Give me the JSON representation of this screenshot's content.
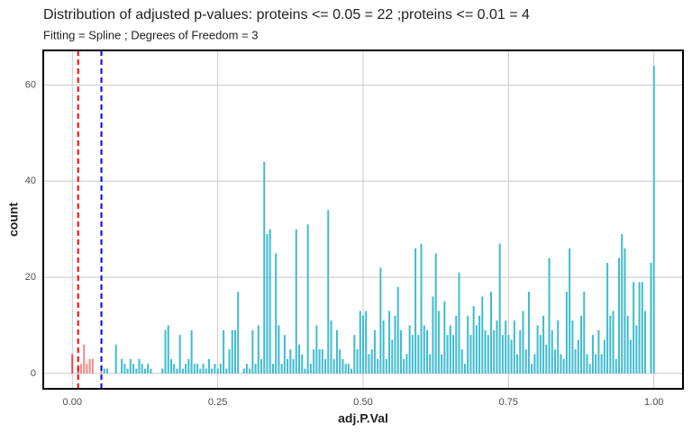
{
  "chart_data": {
    "type": "histogram",
    "title": "Distribution of adjusted p-values:  proteins <= 0.05 = 22 ;proteins <= 0.01 = 4",
    "subtitle": "Fitting = Spline ; Degrees of Freedom = 3",
    "x_label": "adj.P.Val",
    "y_label": "count",
    "bins": [
      -0.0025,
      0.0025,
      0.0075,
      0.0125,
      0.0175,
      0.0225,
      0.0275,
      0.0325,
      0.0375,
      0.0425,
      0.0475,
      0.0525,
      0.0575,
      0.0625,
      0.0675,
      0.0725,
      0.0775,
      0.0825,
      0.0875,
      0.0925,
      0.0975,
      0.1025,
      0.1075,
      0.1125,
      0.1175,
      0.1225,
      0.1275,
      0.1325,
      0.1375,
      0.1425,
      0.1475,
      0.1525,
      0.1575,
      0.1625,
      0.1675,
      0.1725,
      0.1775,
      0.1825,
      0.1875,
      0.1925,
      0.1975,
      0.2025,
      0.2075,
      0.2125,
      0.2175,
      0.2225,
      0.2275,
      0.2325,
      0.2375,
      0.2425,
      0.2475,
      0.2525,
      0.2575,
      0.2625,
      0.2675,
      0.2725,
      0.2775,
      0.2825,
      0.2875,
      0.2925,
      0.2975,
      0.3025,
      0.3075,
      0.3125,
      0.3175,
      0.3225,
      0.3275,
      0.3325,
      0.3375,
      0.3425,
      0.3475,
      0.3525,
      0.3575,
      0.3625,
      0.3675,
      0.3725,
      0.3775,
      0.3825,
      0.3875,
      0.3925,
      0.3975,
      0.4025,
      0.4075,
      0.4125,
      0.4175,
      0.4225,
      0.4275,
      0.4325,
      0.4375,
      0.4425,
      0.4475,
      0.4525,
      0.4575,
      0.4625,
      0.4675,
      0.4725,
      0.4775,
      0.4825,
      0.4875,
      0.4925,
      0.4975,
      0.5025,
      0.5075,
      0.5125,
      0.5175,
      0.5225,
      0.5275,
      0.5325,
      0.5375,
      0.5425,
      0.5475,
      0.5525,
      0.5575,
      0.5625,
      0.5675,
      0.5725,
      0.5775,
      0.5825,
      0.5875,
      0.5925,
      0.5975,
      0.6025,
      0.6075,
      0.6125,
      0.6175,
      0.6225,
      0.6275,
      0.6325,
      0.6375,
      0.6425,
      0.6475,
      0.6525,
      0.6575,
      0.6625,
      0.6675,
      0.6725,
      0.6775,
      0.6825,
      0.6875,
      0.6925,
      0.6975,
      0.7025,
      0.7075,
      0.7125,
      0.7175,
      0.7225,
      0.7275,
      0.7325,
      0.7375,
      0.7425,
      0.7475,
      0.7525,
      0.7575,
      0.7625,
      0.7675,
      0.7725,
      0.7775,
      0.7825,
      0.7875,
      0.7925,
      0.7975,
      0.8025,
      0.8075,
      0.8125,
      0.8175,
      0.8225,
      0.8275,
      0.8325,
      0.8375,
      0.8425,
      0.8475,
      0.8525,
      0.8575,
      0.8625,
      0.8675,
      0.8725,
      0.8775,
      0.8825,
      0.8875,
      0.8925,
      0.8975,
      0.9025,
      0.9075,
      0.9125,
      0.9175,
      0.9225,
      0.9275,
      0.9325,
      0.9375,
      0.9425,
      0.9475,
      0.9525,
      0.9575,
      0.9625,
      0.9675,
      0.9725,
      0.9775,
      0.9825,
      0.9875,
      0.9925,
      0.9975,
      1.0025
    ],
    "values": [
      4,
      0,
      1,
      2,
      6,
      2,
      3,
      3,
      0,
      0,
      1,
      1,
      1,
      0,
      0,
      6,
      0,
      3,
      2,
      1,
      3,
      2,
      1,
      3,
      2,
      1,
      2,
      1,
      0,
      0,
      0,
      1,
      9,
      10,
      3,
      2,
      1,
      8,
      1,
      2,
      3,
      9,
      2,
      2,
      1,
      2,
      1,
      3,
      1,
      2,
      1,
      2,
      9,
      1,
      5,
      9,
      9,
      17,
      0,
      1,
      2,
      1,
      9,
      2,
      10,
      3,
      44,
      29,
      30,
      2,
      25,
      10,
      2,
      8,
      3,
      5,
      3,
      30,
      6,
      4,
      1,
      31,
      2,
      5,
      10,
      5,
      5,
      3,
      34,
      11,
      3,
      9,
      5,
      3,
      2,
      2,
      1,
      8,
      5,
      13,
      12,
      13,
      4,
      5,
      9,
      3,
      22,
      11,
      3,
      13,
      7,
      12,
      18,
      9,
      3,
      4,
      10,
      8,
      26,
      8,
      27,
      10,
      9,
      4,
      16,
      25,
      13,
      4,
      15,
      8,
      10,
      8,
      12,
      21,
      5,
      2,
      12,
      8,
      14,
      10,
      12,
      16,
      9,
      8,
      17,
      9,
      11,
      27,
      8,
      11,
      8,
      7,
      11,
      4,
      9,
      13,
      5,
      17,
      2,
      4,
      10,
      8,
      12,
      6,
      24,
      9,
      5,
      11,
      4,
      3,
      17,
      26,
      11,
      5,
      7,
      12,
      17,
      4,
      2,
      8,
      4,
      9,
      4,
      7,
      23,
      12,
      13,
      3,
      24,
      29,
      26,
      12,
      7,
      19,
      10,
      19,
      19,
      13,
      0,
      23,
      64
    ],
    "bar_colors": [
      "#e8474f",
      "#f08a8a",
      "#40bcd0"
    ],
    "cutoff_lines": [
      {
        "x": 0.01,
        "color": "#ff0000"
      },
      {
        "x": 0.05,
        "color": "#0000ff"
      }
    ],
    "xlim": [
      -0.05,
      1.05
    ],
    "xticks": [
      {
        "value": 0,
        "label": "0.00"
      },
      {
        "value": 0.25,
        "label": "0.25"
      },
      {
        "value": 0.5,
        "label": "0.50"
      },
      {
        "value": 0.75,
        "label": "0.75"
      },
      {
        "value": 1,
        "label": "1.00"
      }
    ],
    "ylim": [
      -3.2,
      67.2
    ],
    "yticks": [
      0,
      20,
      40,
      60
    ],
    "grid": true
  }
}
